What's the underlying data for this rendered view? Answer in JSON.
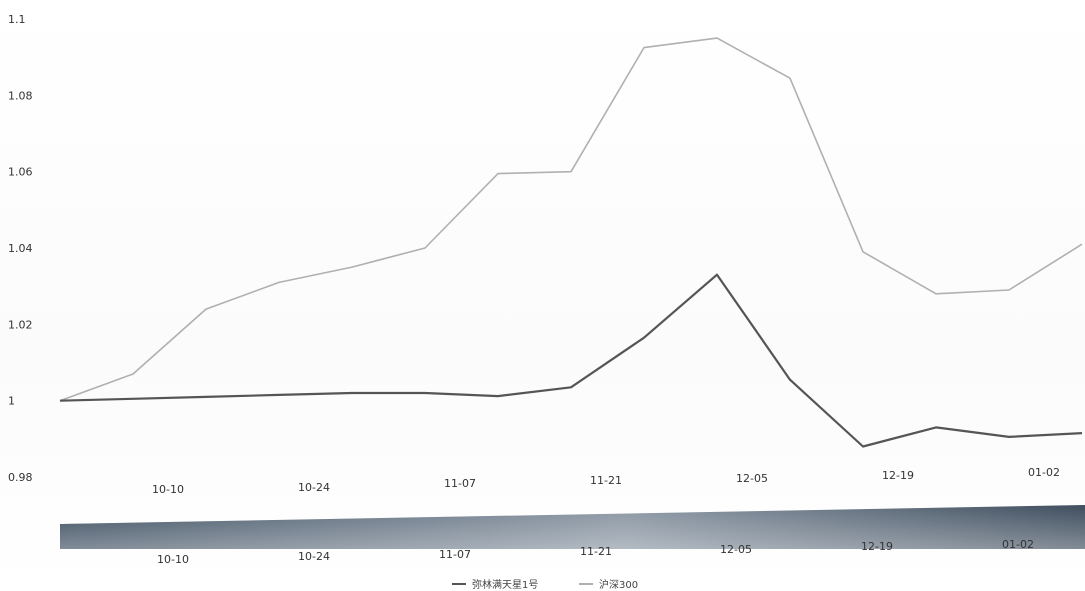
{
  "chart_data": {
    "type": "line",
    "title": "",
    "xlabel": "",
    "ylabel": "",
    "ylim": [
      0.98,
      1.1
    ],
    "yticks": [
      "0.98",
      "1",
      "1.02",
      "1.04",
      "1.06",
      "1.08",
      "1.1"
    ],
    "x_tick_labels": [
      "10-10",
      "10-24",
      "11-07",
      "11-21",
      "12-05",
      "12-19",
      "01-02"
    ],
    "navigator_tick_labels": [
      "10-10",
      "10-24",
      "11-07",
      "11-21",
      "12-05",
      "12-19",
      "01-02"
    ],
    "grid": false,
    "legend_position": "bottom-center",
    "series": [
      {
        "name": "弥林满天星1号",
        "color": "#555555",
        "points": [
          {
            "x": "10-03",
            "y": 1.0
          },
          {
            "x": "10-10",
            "y": 1.0005
          },
          {
            "x": "10-17",
            "y": 1.001
          },
          {
            "x": "10-24",
            "y": 1.0015
          },
          {
            "x": "10-31",
            "y": 1.002
          },
          {
            "x": "11-07",
            "y": 1.002
          },
          {
            "x": "11-14",
            "y": 1.0012
          },
          {
            "x": "11-21",
            "y": 1.0035
          },
          {
            "x": "11-28",
            "y": 1.0165
          },
          {
            "x": "12-05",
            "y": 1.033
          },
          {
            "x": "12-12",
            "y": 1.0055
          },
          {
            "x": "12-19",
            "y": 0.988
          },
          {
            "x": "12-26",
            "y": 0.993
          },
          {
            "x": "01-02",
            "y": 0.9905
          },
          {
            "x": "01-09",
            "y": 0.9915
          }
        ]
      },
      {
        "name": "沪深300",
        "color": "#b0b0b0",
        "points": [
          {
            "x": "10-03",
            "y": 1.0
          },
          {
            "x": "10-10",
            "y": 1.007
          },
          {
            "x": "10-17",
            "y": 1.024
          },
          {
            "x": "10-24",
            "y": 1.031
          },
          {
            "x": "10-31",
            "y": 1.035
          },
          {
            "x": "11-07",
            "y": 1.04
          },
          {
            "x": "11-14",
            "y": 1.0595
          },
          {
            "x": "11-21",
            "y": 1.06
          },
          {
            "x": "11-28",
            "y": 1.0925
          },
          {
            "x": "12-05",
            "y": 1.095
          },
          {
            "x": "12-12",
            "y": 1.0845
          },
          {
            "x": "12-19",
            "y": 1.039
          },
          {
            "x": "12-26",
            "y": 1.028
          },
          {
            "x": "01-02",
            "y": 1.029
          },
          {
            "x": "01-09",
            "y": 1.041
          }
        ]
      }
    ]
  }
}
